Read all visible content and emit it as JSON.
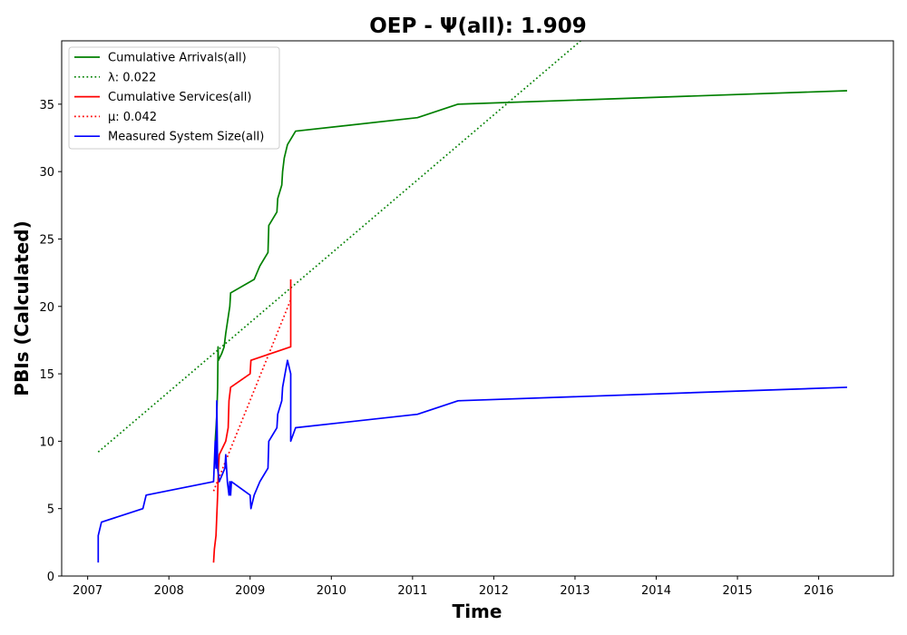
{
  "chart_data": {
    "type": "line",
    "title": "OEP -  Ψ(all): 1.909",
    "xlabel": "Time",
    "ylabel": "PBIs (Calculated)",
    "xlim": [
      2006.68,
      2016.92
    ],
    "ylim": [
      0,
      39.7
    ],
    "x_ticks": [
      2007,
      2008,
      2009,
      2010,
      2011,
      2012,
      2013,
      2014,
      2015,
      2016
    ],
    "y_ticks": [
      0,
      5,
      10,
      15,
      20,
      25,
      30,
      35
    ],
    "grid": false,
    "legend_position": "top-left",
    "series": [
      {
        "name": "Cumulative Arrivals(all)",
        "style": "solid",
        "color": "#008000",
        "points": [
          [
            2008.57,
            10
          ],
          [
            2008.58,
            11
          ],
          [
            2008.59,
            12
          ],
          [
            2008.6,
            14
          ],
          [
            2008.605,
            17
          ],
          [
            2008.61,
            16
          ],
          [
            2008.65,
            16.5
          ],
          [
            2008.68,
            17
          ],
          [
            2008.7,
            18
          ],
          [
            2008.75,
            20
          ],
          [
            2008.76,
            21
          ],
          [
            2009.05,
            22
          ],
          [
            2009.12,
            23
          ],
          [
            2009.22,
            24
          ],
          [
            2009.23,
            26
          ],
          [
            2009.33,
            27
          ],
          [
            2009.34,
            28
          ],
          [
            2009.39,
            29
          ],
          [
            2009.4,
            30
          ],
          [
            2009.42,
            31
          ],
          [
            2009.46,
            32
          ],
          [
            2009.56,
            33
          ],
          [
            2011.06,
            34
          ],
          [
            2011.56,
            35
          ],
          [
            2016.35,
            36
          ]
        ]
      },
      {
        "name": "λ: 0.022",
        "style": "dotted",
        "color": "#008000",
        "points": [
          [
            2007.13,
            9.2
          ],
          [
            2013.07,
            39.7
          ]
        ]
      },
      {
        "name": "Cumulative Services(all)",
        "style": "solid",
        "color": "#ff0000",
        "points": [
          [
            2008.55,
            1
          ],
          [
            2008.56,
            2
          ],
          [
            2008.58,
            3
          ],
          [
            2008.6,
            6
          ],
          [
            2008.61,
            8
          ],
          [
            2008.62,
            9
          ],
          [
            2008.7,
            10
          ],
          [
            2008.73,
            11
          ],
          [
            2008.74,
            13
          ],
          [
            2008.76,
            14
          ],
          [
            2009.0,
            15
          ],
          [
            2009.01,
            16
          ],
          [
            2009.5,
            17
          ],
          [
            2009.5,
            22
          ]
        ]
      },
      {
        "name": "μ: 0.042",
        "style": "dotted",
        "color": "#ff0000",
        "points": [
          [
            2008.55,
            6.3
          ],
          [
            2009.5,
            20.5
          ]
        ]
      },
      {
        "name": "Measured System Size(all)",
        "style": "solid",
        "color": "#0000ff",
        "points": [
          [
            2007.13,
            1
          ],
          [
            2007.13,
            3
          ],
          [
            2007.17,
            4
          ],
          [
            2007.68,
            5
          ],
          [
            2007.72,
            6
          ],
          [
            2008.55,
            7
          ],
          [
            2008.57,
            10
          ],
          [
            2008.58,
            8
          ],
          [
            2008.59,
            13
          ],
          [
            2008.6,
            8
          ],
          [
            2008.62,
            7
          ],
          [
            2008.69,
            8
          ],
          [
            2008.7,
            9
          ],
          [
            2008.72,
            7
          ],
          [
            2008.74,
            6
          ],
          [
            2008.75,
            7
          ],
          [
            2008.76,
            6
          ],
          [
            2008.77,
            7
          ],
          [
            2009.0,
            6
          ],
          [
            2009.01,
            5
          ],
          [
            2009.05,
            6
          ],
          [
            2009.12,
            7
          ],
          [
            2009.22,
            8
          ],
          [
            2009.23,
            10
          ],
          [
            2009.33,
            11
          ],
          [
            2009.34,
            12
          ],
          [
            2009.39,
            13
          ],
          [
            2009.4,
            14
          ],
          [
            2009.46,
            16
          ],
          [
            2009.5,
            15
          ],
          [
            2009.5,
            10
          ],
          [
            2009.56,
            11
          ],
          [
            2011.06,
            12
          ],
          [
            2011.56,
            13
          ],
          [
            2016.35,
            14
          ]
        ]
      }
    ]
  }
}
